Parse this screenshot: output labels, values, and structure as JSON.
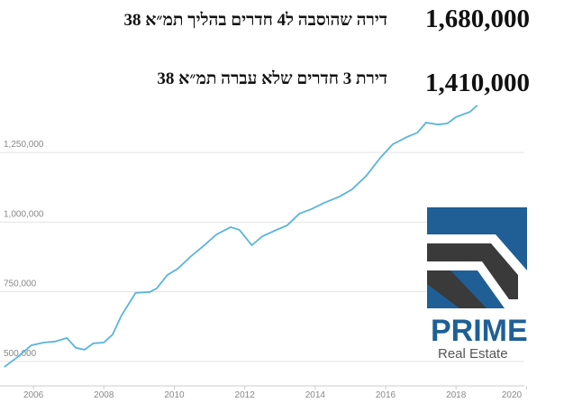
{
  "chart_data": {
    "type": "line",
    "annotations": [
      {
        "text": "דירה שהוסבה ל4 חדרים בהליך תמ״א 38",
        "price": "1,680,000"
      },
      {
        "text": "דירת 3 חדרים שלא עברה תמ״א 38",
        "price": "1,410,000"
      }
    ],
    "logo": {
      "name": "PRIME",
      "subtitle": "Real Estate"
    },
    "x": [
      2005.17,
      2005.55,
      2005.94,
      2006.3,
      2006.6,
      2006.95,
      2007.2,
      2007.45,
      2007.7,
      2008.0,
      2008.25,
      2008.5,
      2008.9,
      2009.3,
      2009.5,
      2009.8,
      2010.1,
      2010.45,
      2010.85,
      2011.2,
      2011.6,
      2011.85,
      2012.2,
      2012.5,
      2012.9,
      2013.2,
      2013.55,
      2013.9,
      2014.25,
      2014.7,
      2015.05,
      2015.45,
      2015.85,
      2016.2,
      2016.6,
      2016.9,
      2017.15,
      2017.5,
      2017.75,
      2018.0,
      2018.4,
      2018.6
    ],
    "series": [
      {
        "color": "#5ab4dc",
        "values": [
          480000,
          516000,
          558000,
          568000,
          571000,
          584000,
          549000,
          542000,
          565000,
          568000,
          597000,
          665000,
          746000,
          749000,
          762000,
          810000,
          833000,
          875000,
          917000,
          956000,
          982000,
          972000,
          917000,
          949000,
          972000,
          988000,
          1030000,
          1047000,
          1069000,
          1092000,
          1118000,
          1166000,
          1231000,
          1279000,
          1305000,
          1321000,
          1357000,
          1350000,
          1354000,
          1377000,
          1396000,
          1419000
        ]
      }
    ],
    "xlim": [
      2005.05,
      2020.4
    ],
    "xticks": [
      2006,
      2008,
      2010,
      2012,
      2014,
      2016,
      2018,
      2020
    ],
    "ylim": [
      422000,
      1425000
    ],
    "yticks": [
      {
        "value": 500000,
        "label": "500,000"
      },
      {
        "value": 750000,
        "label": "750,000"
      },
      {
        "value": 1000000,
        "label": "1,000,000"
      },
      {
        "value": 1250000,
        "label": "1,250,000"
      }
    ],
    "grid": true
  }
}
